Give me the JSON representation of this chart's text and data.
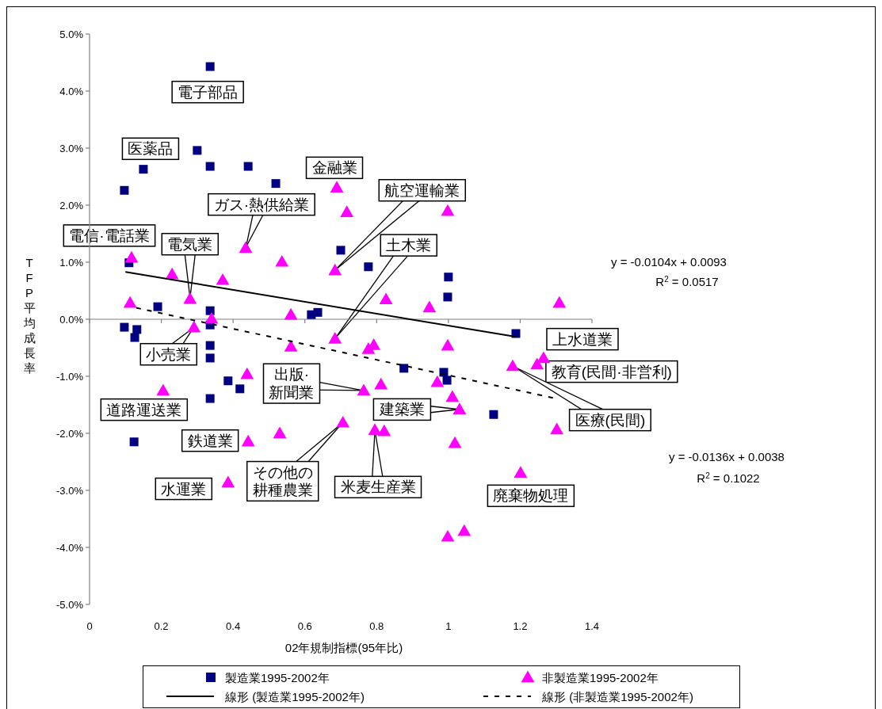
{
  "chart_data": {
    "type": "scatter",
    "xlabel": "02年規制指標(95年比)",
    "ylabel": "TFP平均成長率",
    "xlim": [
      0,
      1.4
    ],
    "xticks": [
      0,
      0.2,
      0.4,
      0.6,
      0.8,
      1,
      1.2,
      1.4
    ],
    "ylim": [
      -5,
      5
    ],
    "yticks": [
      {
        "value": -5,
        "label": "-5.0%"
      },
      {
        "value": -4,
        "label": "-4.0%"
      },
      {
        "value": -3,
        "label": "-3.0%"
      },
      {
        "value": -2,
        "label": "-2.0%"
      },
      {
        "value": -1,
        "label": "-1.0%"
      },
      {
        "value": 0,
        "label": "0.0%"
      },
      {
        "value": 1,
        "label": "1.0%"
      },
      {
        "value": 2,
        "label": "2.0%"
      },
      {
        "value": 3,
        "label": "3.0%"
      },
      {
        "value": 4,
        "label": "4.0%"
      },
      {
        "value": 5,
        "label": "5.0%"
      }
    ],
    "legend": "bottom",
    "series": [
      {
        "name": "製造業1995-2002年",
        "marker": "square",
        "color": "#000080",
        "x": [
          0.336,
          0.3,
          0.15,
          0.336,
          0.442,
          0.519,
          0.097,
          0.7,
          0.777,
          0.11,
          1.0,
          0.998,
          0.19,
          0.336,
          0.618,
          0.636,
          0.336,
          0.097,
          0.132,
          0.126,
          0.336,
          0.336,
          0.386,
          0.419,
          0.336,
          0.124,
          0.876,
          0.987,
          0.996,
          1.126,
          1.188
        ],
        "values": [
          4.43,
          2.96,
          2.63,
          2.68,
          2.68,
          2.38,
          2.26,
          1.21,
          0.92,
          0.99,
          0.74,
          0.39,
          0.22,
          0.15,
          0.08,
          0.12,
          -0.1,
          -0.14,
          -0.18,
          -0.32,
          -0.46,
          -0.68,
          -1.08,
          -1.22,
          -1.39,
          -2.15,
          -0.86,
          -0.93,
          -1.07,
          -1.67,
          -0.25
        ]
      },
      {
        "name": "非製造業1995-2002年",
        "marker": "triangle",
        "color": "#ff00ff",
        "x": [
          0.117,
          0.23,
          0.28,
          0.113,
          0.371,
          0.435,
          0.536,
          0.684,
          0.689,
          0.717,
          0.998,
          0.826,
          0.947,
          1.309,
          0.561,
          0.34,
          0.291,
          0.684,
          0.561,
          0.777,
          0.792,
          0.998,
          1.179,
          1.247,
          1.265,
          0.439,
          0.969,
          0.812,
          0.764,
          1.011,
          1.031,
          0.205,
          0.706,
          0.795,
          0.821,
          0.53,
          0.442,
          1.018,
          1.302,
          1.201,
          0.386,
          1.044,
          0.998
        ],
        "values": [
          1.08,
          0.79,
          0.36,
          0.29,
          0.69,
          1.25,
          1.01,
          0.86,
          2.31,
          1.88,
          1.9,
          0.35,
          0.21,
          0.29,
          0.08,
          0.01,
          -0.14,
          -0.34,
          -0.48,
          -0.52,
          -0.45,
          -0.46,
          -0.82,
          -0.79,
          -0.68,
          -0.96,
          -1.1,
          -1.14,
          -1.25,
          -1.36,
          -1.58,
          -1.25,
          -1.81,
          -1.94,
          -1.96,
          -2.0,
          -2.14,
          -2.17,
          -1.93,
          -2.69,
          -2.86,
          -3.71,
          -3.81
        ]
      },
      {
        "name": "線形 (製造業1995-2002年)",
        "type": "line",
        "marker": "none",
        "line_style": "solid",
        "color": "#000000",
        "x": [
          0.1,
          1.19
        ],
        "values": [
          0.83,
          -0.31
        ]
      },
      {
        "name": "線形 (非製造業1995-2002年)",
        "type": "line",
        "marker": "none",
        "line_style": "dashed",
        "color": "#000000",
        "x": [
          0.13,
          1.3
        ],
        "values": [
          0.2,
          -1.39
        ]
      }
    ],
    "annotations": [
      {
        "text": "電子部品",
        "x": 0.336,
        "y": 4.43
      },
      {
        "text": "医薬品",
        "x": 0.15,
        "y": 2.63
      },
      {
        "text": "金融業",
        "x": 0.689,
        "y": 2.31
      },
      {
        "text": "ガス·熱供給業",
        "x": 0.435,
        "y": 1.25
      },
      {
        "text": "航空運輸業",
        "x": 0.684,
        "y": 0.86
      },
      {
        "text": "電信·電話業",
        "x": 0.117,
        "y": 1.08
      },
      {
        "text": "電気業",
        "x": 0.28,
        "y": 0.36
      },
      {
        "text": "土木業",
        "x": 0.684,
        "y": -0.34
      },
      {
        "text": "上水道業",
        "x": 1.188,
        "y": -0.25
      },
      {
        "text": "小売業",
        "x": 0.291,
        "y": -0.14
      },
      {
        "text": "教育(民間·非営利)",
        "x": 1.265,
        "y": -0.68
      },
      {
        "text": "出版·新聞業",
        "x": 0.764,
        "y": -1.25
      },
      {
        "text": "医療(民間)",
        "x": 1.179,
        "y": -0.82
      },
      {
        "text": "道路運送業",
        "x": 0.205,
        "y": -1.25
      },
      {
        "text": "建築業",
        "x": 1.031,
        "y": -1.58
      },
      {
        "text": "鉄道業",
        "x": 0.442,
        "y": -2.14
      },
      {
        "text": "その他の耕種農業",
        "x": 0.706,
        "y": -1.81
      },
      {
        "text": "米麦生産業",
        "x": 0.795,
        "y": -1.94
      },
      {
        "text": "水運業",
        "x": 0.386,
        "y": -2.86
      },
      {
        "text": "廃棄物処理",
        "x": 1.201,
        "y": -2.69
      },
      "y = -0.0104x + 0.0093",
      "R$^{2}$ = 0.0517",
      "y = -0.0136x + 0.0038",
      "R$^{2}$ = 0.1022"
    ]
  }
}
